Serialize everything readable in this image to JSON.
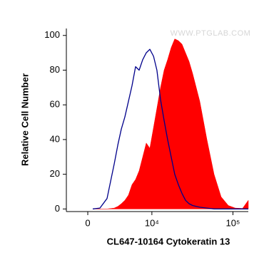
{
  "chart_data": {
    "type": "histogram-overlay",
    "xlabel": "CL647-10164 Cytokeratin 13",
    "ylabel": "Relative Cell Number",
    "watermark": "WWW.PTGLAB.COM",
    "xscale": "biexponential",
    "xlim": [
      -2170,
      154000
    ],
    "xticks": [
      0,
      {
        "value": 10000,
        "label": "10⁴"
      },
      {
        "value": 100000,
        "label": "10⁵"
      }
    ],
    "ylim": [
      -1.5,
      104
    ],
    "yticks": [
      0,
      20,
      40,
      60,
      80,
      100
    ],
    "x": [
      480,
      1180,
      1930,
      2760,
      3230,
      3690,
      4220,
      4780,
      5390,
      6060,
      6790,
      7580,
      8450,
      9410,
      10500,
      11600,
      12900,
      14300,
      15800,
      17500,
      19400,
      21500,
      23800,
      26300,
      29100,
      32200,
      35600,
      39400,
      48100,
      58800,
      71800,
      87800,
      107000,
      131000,
      154000
    ],
    "series": [
      {
        "color": "#ff0000",
        "fill": true,
        "values": [
          0,
          0,
          0,
          0.5,
          1.5,
          3,
          5,
          8,
          14,
          17,
          22,
          30,
          38,
          35,
          47,
          58,
          70,
          80,
          86,
          93,
          98,
          97,
          95,
          90,
          85,
          78,
          70,
          62,
          40,
          20,
          7,
          2,
          0.5,
          0.3,
          5
        ]
      },
      {
        "color": "#00008b",
        "fill": false,
        "values": [
          0,
          0.5,
          6,
          26,
          37,
          46,
          53,
          62,
          71,
          82,
          80,
          86,
          90,
          92,
          88,
          80,
          63,
          51,
          40,
          30,
          20,
          14,
          9,
          5,
          3,
          2,
          1.5,
          1,
          0.5,
          0,
          0,
          0,
          0,
          0,
          0
        ]
      }
    ]
  }
}
